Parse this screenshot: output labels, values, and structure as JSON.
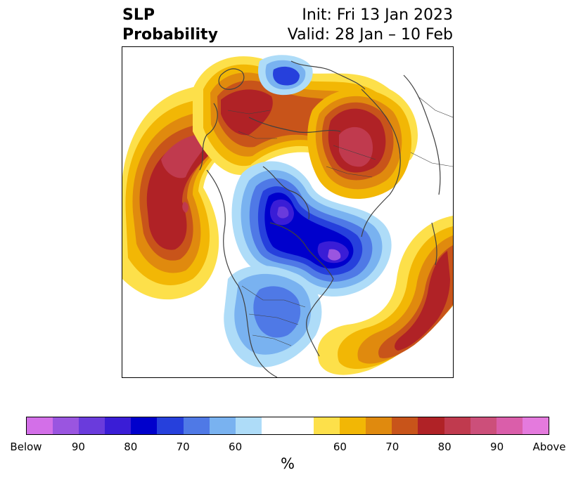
{
  "title": {
    "left_line1": "SLP",
    "left_line2": "Probability",
    "right_line1": "Init: Fri 13 Jan 2023",
    "right_line2": "Valid: 28 Jan – 10 Feb"
  },
  "colorbar": {
    "unit": "%",
    "tick_labels": [
      "Below",
      "90",
      "80",
      "70",
      "60",
      "60",
      "70",
      "80",
      "90",
      "Above"
    ],
    "below_colors": [
      "#d36fe8",
      "#9a55e0",
      "#6a3bdc",
      "#3a1dd6",
      "#0000cc",
      "#2640dc",
      "#4f79e6",
      "#79b2f0",
      "#aedcf8"
    ],
    "neutral_color": "#ffffff",
    "above_colors": [
      "#fde04a",
      "#f2b705",
      "#e08a0e",
      "#c8541a",
      "#b02226",
      "#c03a4e",
      "#cc4f7a",
      "#da5eaa",
      "#e47add"
    ]
  },
  "map": {
    "projection": "north-polar-stereographic",
    "variable": "sea-level-pressure-probability",
    "features": [
      "positive-anomaly-north-pacific",
      "positive-anomaly-europe-russia",
      "positive-anomaly-east-asia",
      "positive-anomaly-north-atlantic",
      "negative-anomaly-arctic-canada",
      "negative-anomaly-north-america",
      "negative-anomaly-barents"
    ]
  }
}
